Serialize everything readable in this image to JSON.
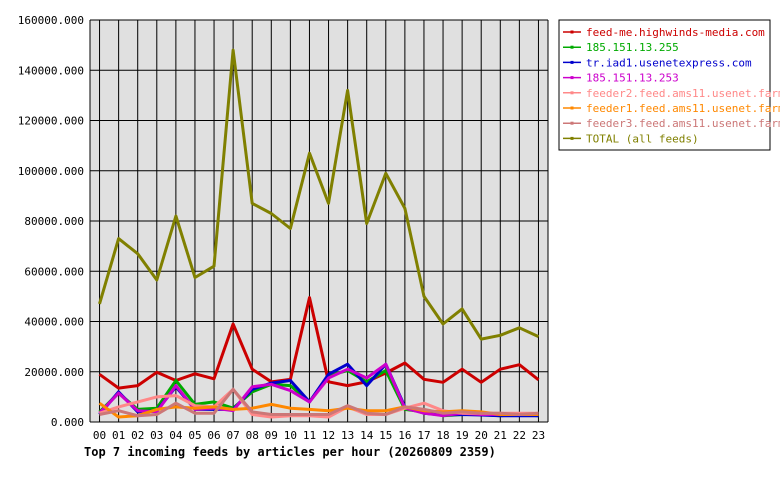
{
  "colors": {
    "background": "#ffffff",
    "plot_background": "#e0e0e0",
    "grid": "#000000",
    "axis": "#000000"
  },
  "chart_data": {
    "type": "line",
    "title": "Top 7 incoming feeds by articles per hour (20260809 2359)",
    "xlabel": "",
    "ylabel": "",
    "x": [
      "00",
      "01",
      "02",
      "03",
      "04",
      "05",
      "06",
      "07",
      "08",
      "09",
      "10",
      "11",
      "12",
      "13",
      "14",
      "15",
      "16",
      "17",
      "18",
      "19",
      "20",
      "21",
      "22",
      "23"
    ],
    "ylim": [
      0,
      160000
    ],
    "yticks": [
      {
        "value": 0,
        "label": "0.000"
      },
      {
        "value": 20000,
        "label": "20000.000"
      },
      {
        "value": 40000,
        "label": "40000.000"
      },
      {
        "value": 60000,
        "label": "60000.000"
      },
      {
        "value": 80000,
        "label": "80000.000"
      },
      {
        "value": 100000,
        "label": "100000.000"
      },
      {
        "value": 120000,
        "label": "120000.000"
      },
      {
        "value": 140000,
        "label": "140000.000"
      },
      {
        "value": 160000,
        "label": "160000.000"
      }
    ],
    "grid": true,
    "legend_position": "right",
    "series": [
      {
        "name": "feed-me.highwinds-media.com",
        "color": "#cc0000",
        "values": [
          19000,
          13500,
          14500,
          19800,
          16500,
          19200,
          17200,
          39000,
          21000,
          16000,
          17000,
          49500,
          16000,
          14500,
          16000,
          19500,
          23500,
          17000,
          15800,
          21000,
          15800,
          21000,
          22800,
          16800
        ]
      },
      {
        "name": "185.151.13.255",
        "color": "#00aa00",
        "values": [
          4000,
          11500,
          5000,
          5500,
          16500,
          7000,
          8000,
          5500,
          12000,
          15000,
          14500,
          8000,
          18500,
          20500,
          16000,
          20500,
          5000,
          4000,
          2500,
          3000,
          3000,
          2500,
          3000,
          2500
        ]
      },
      {
        "name": "tr.iad1.usenetexpress.com",
        "color": "#0000cc",
        "values": [
          3000,
          12000,
          4000,
          4500,
          14000,
          5000,
          5000,
          5000,
          13000,
          15500,
          16500,
          8000,
          19000,
          23000,
          14500,
          23000,
          6000,
          3500,
          2800,
          3000,
          2800,
          2500,
          2500,
          2500
        ]
      },
      {
        "name": "185.151.13.253",
        "color": "#cc00cc",
        "values": [
          3500,
          11500,
          4500,
          4000,
          14500,
          5000,
          5500,
          4500,
          14000,
          15000,
          12500,
          8000,
          17500,
          21000,
          17500,
          23000,
          5500,
          3500,
          2500,
          3500,
          3000,
          3000,
          3000,
          3000
        ]
      },
      {
        "name": "feeder2.feed.ams11.usenet.farm",
        "color": "#ff8888",
        "values": [
          3500,
          6000,
          8000,
          10000,
          10500,
          6500,
          6000,
          13000,
          3000,
          2000,
          2500,
          2500,
          2000,
          6000,
          3000,
          3000,
          5500,
          7500,
          4500,
          3500,
          3500,
          3500,
          3500,
          3500
        ]
      },
      {
        "name": "feeder1.feed.ams11.usenet.farm",
        "color": "#ff8800",
        "values": [
          7500,
          2000,
          2500,
          5000,
          6000,
          5500,
          6000,
          5000,
          5500,
          7000,
          5500,
          5000,
          4500,
          5500,
          4500,
          4500,
          6000,
          4500,
          4000,
          4500,
          4000,
          3000,
          3000,
          3000
        ]
      },
      {
        "name": "feeder3.feed.ams11.usenet.farm",
        "color": "#cc7777",
        "values": [
          3000,
          4500,
          2500,
          3000,
          7500,
          3500,
          3500,
          13000,
          4000,
          3000,
          3000,
          3000,
          3000,
          6500,
          3500,
          3000,
          6000,
          5000,
          3500,
          4000,
          3500,
          3500,
          3000,
          3500
        ]
      },
      {
        "name": "TOTAL (all feeds)",
        "color": "#808000",
        "values": [
          47000,
          73000,
          67000,
          56500,
          82000,
          57500,
          62000,
          148000,
          87000,
          83000,
          77000,
          107000,
          87000,
          132000,
          79000,
          99000,
          85000,
          50000,
          39000,
          45000,
          33000,
          34500,
          37500,
          34000
        ]
      }
    ]
  }
}
